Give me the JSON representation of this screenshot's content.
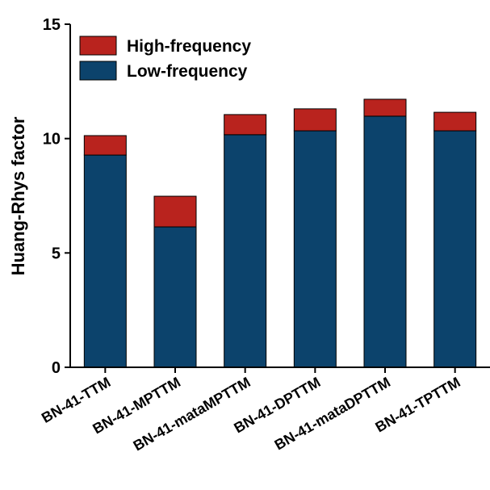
{
  "chart_data": {
    "type": "stacked-bar",
    "y_label": "Huang-Rhys factor",
    "categories": [
      "BN-41-TTM",
      "BN-41-MPTTM",
      "BN-41-mataMPTTM",
      "BN-41-DPTTM",
      "BN-41-mataDPTTM",
      "BN-41-TPTTM"
    ],
    "series": [
      {
        "name": "Low-frequency",
        "color": "#0c436c",
        "values": [
          9.28,
          6.14,
          10.17,
          10.34,
          10.98,
          10.34
        ]
      },
      {
        "name": "High-frequency",
        "color": "#b9231e",
        "values": [
          0.85,
          1.34,
          0.88,
          0.96,
          0.74,
          0.81
        ]
      }
    ],
    "ylim": [
      0,
      15
    ],
    "yticks": [
      0,
      5,
      10,
      15
    ],
    "legend": "upper-left"
  }
}
